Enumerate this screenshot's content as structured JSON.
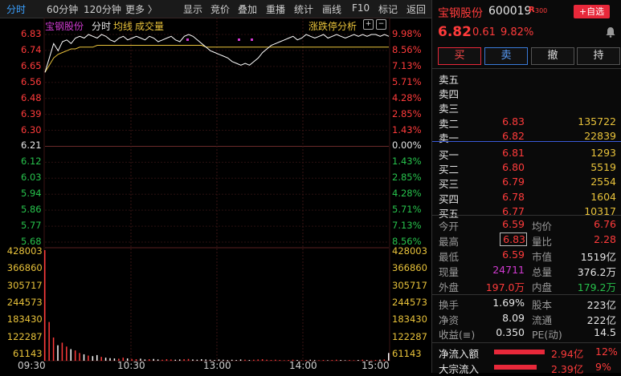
{
  "toolbar": {
    "items": [
      "分时",
      "60分钟",
      "120分钟",
      "更多 〉",
      "显示",
      "竞价",
      "叠加",
      "重播",
      "统计",
      "画线",
      "F10",
      "标记",
      "返回"
    ]
  },
  "chart_header": {
    "stock_name": "宝钢股份",
    "mode": "分时",
    "avg_label": "均线",
    "vol_label": "成交量",
    "limit_label": "涨跌停分析"
  },
  "chart_data": {
    "type": "line",
    "price_ticks": [
      "6.83",
      "6.74",
      "6.65",
      "6.56",
      "6.48",
      "6.39",
      "6.30",
      "6.21",
      "6.12",
      "6.03",
      "5.94",
      "5.86",
      "5.77",
      "5.68"
    ],
    "pct_ticks": [
      "9.98%",
      "8.56%",
      "7.13%",
      "5.71%",
      "4.28%",
      "2.85%",
      "1.43%",
      "0.00%",
      "1.43%",
      "2.85%",
      "4.28%",
      "5.71%",
      "7.13%",
      "8.56%"
    ],
    "vol_ticks": [
      "428003",
      "366860",
      "305717",
      "244573",
      "183430",
      "122287",
      "61143"
    ],
    "time_ticks": [
      "09:30",
      "10:30",
      "13:00",
      "14:00",
      "15:00"
    ],
    "ylim": [
      5.59,
      6.83
    ],
    "prev_close": 6.21,
    "price_series": [
      6.62,
      6.7,
      6.78,
      6.74,
      6.79,
      6.8,
      6.78,
      6.81,
      6.82,
      6.81,
      6.83,
      6.82,
      6.81,
      6.83,
      6.82,
      6.8,
      6.79,
      6.81,
      6.82,
      6.8,
      6.81,
      6.82,
      6.81,
      6.8,
      6.82,
      6.81,
      6.79,
      6.8,
      6.81,
      6.82,
      6.8,
      6.79,
      6.82,
      6.83,
      6.82,
      6.8,
      6.78,
      6.76,
      6.74,
      6.73,
      6.72,
      6.71,
      6.7,
      6.68,
      6.67,
      6.66,
      6.67,
      6.66,
      6.68,
      6.7,
      6.73,
      6.75,
      6.77,
      6.78,
      6.79,
      6.8,
      6.81,
      6.82,
      6.8,
      6.81,
      6.83,
      6.82,
      6.81,
      6.82,
      6.83,
      6.81,
      6.82,
      6.83,
      6.82,
      6.81,
      6.82,
      6.83,
      6.82,
      6.83,
      6.82,
      6.83,
      6.83,
      6.82,
      6.83,
      6.82
    ],
    "avg_series": [
      6.62,
      6.66,
      6.7,
      6.72,
      6.73,
      6.74,
      6.75,
      6.75,
      6.76,
      6.76,
      6.76,
      6.76,
      6.77,
      6.77,
      6.77,
      6.77,
      6.77,
      6.77,
      6.77,
      6.77,
      6.77,
      6.77,
      6.77,
      6.77,
      6.77,
      6.77,
      6.77,
      6.77,
      6.77,
      6.77,
      6.77,
      6.77,
      6.77,
      6.77,
      6.77,
      6.77,
      6.77,
      6.76,
      6.76,
      6.76,
      6.76,
      6.76,
      6.76,
      6.76,
      6.76,
      6.76,
      6.76,
      6.76,
      6.76,
      6.76,
      6.76,
      6.76,
      6.76,
      6.76,
      6.76,
      6.76,
      6.76,
      6.76,
      6.76,
      6.76,
      6.76,
      6.76,
      6.76,
      6.76,
      6.76,
      6.76,
      6.76,
      6.76,
      6.76,
      6.76,
      6.76,
      6.76,
      6.76,
      6.76,
      6.76,
      6.76,
      6.76,
      6.76,
      6.76,
      6.76
    ],
    "volume_series": [
      428003,
      150000,
      90000,
      60000,
      70000,
      55000,
      45000,
      40000,
      30000,
      25000,
      20000,
      18000,
      22000,
      15000,
      12000,
      10000,
      9000,
      8000,
      12000,
      9000,
      7000,
      6000,
      8000,
      5000,
      6000,
      7000,
      5000,
      4000,
      6000,
      5000,
      4000,
      5000,
      6000,
      7000,
      5000,
      4000,
      6000,
      5000,
      4000,
      3000,
      5000,
      4000,
      3000,
      4000,
      3000,
      5000,
      4000,
      3000,
      4000,
      5000,
      6000,
      4000,
      3000,
      4000,
      3000,
      2000,
      3000,
      4000,
      3000,
      2000,
      3000,
      4000,
      3000,
      2000,
      3000,
      2000,
      3000,
      4000,
      3000,
      2000,
      3000,
      2000,
      3000,
      4000,
      3000,
      2000,
      3000,
      4000,
      5000,
      30000
    ],
    "colors": {
      "price_line": "#ffffff",
      "avg_line": "#e8c23a",
      "up": "#ff3b3b",
      "down": "#27c24c"
    }
  },
  "panel": {
    "name": "宝钢股份",
    "code": "600019",
    "badge": "R",
    "badge_num": "300",
    "add_btn": "+自选",
    "price": "6.82",
    "change": "0.61",
    "change_pct": "9.82%",
    "actions": [
      "买",
      "卖",
      "撤",
      "持"
    ],
    "asks": [
      {
        "label": "卖五",
        "price": "",
        "vol": ""
      },
      {
        "label": "卖四",
        "price": "",
        "vol": ""
      },
      {
        "label": "卖三",
        "price": "",
        "vol": ""
      },
      {
        "label": "卖二",
        "price": "6.83",
        "vol": "135722"
      },
      {
        "label": "卖一",
        "price": "6.82",
        "vol": "22839"
      }
    ],
    "bids": [
      {
        "label": "买一",
        "price": "6.81",
        "vol": "1293"
      },
      {
        "label": "买二",
        "price": "6.80",
        "vol": "5519"
      },
      {
        "label": "买三",
        "price": "6.79",
        "vol": "2554"
      },
      {
        "label": "买四",
        "price": "6.78",
        "vol": "1604"
      },
      {
        "label": "买五",
        "price": "6.77",
        "vol": "10317"
      }
    ],
    "stats": {
      "open_label": "今开",
      "open": "6.59",
      "avg_label": "均价",
      "avg": "6.76",
      "high_label": "最高",
      "high": "6.83",
      "vol_ratio_label": "量比",
      "vol_ratio": "2.28",
      "low_label": "最低",
      "low": "6.59",
      "mktcap_label": "市值",
      "mktcap": "1519亿",
      "cur_vol_label": "现量",
      "cur_vol": "24711",
      "total_vol_label": "总量",
      "total_vol": "376.2万",
      "outer_label": "外盘",
      "outer": "197.0万",
      "inner_label": "内盘",
      "inner": "179.2万",
      "turnover_label": "换手",
      "turnover": "1.69%",
      "capital_label": "股本",
      "capital": "223亿",
      "nav_label": "净资",
      "nav": "8.09",
      "float_label": "流通",
      "float": "222亿",
      "eps_label": "收益(≡)",
      "eps": "0.350",
      "pe_label": "PE(动)",
      "pe": "14.5"
    },
    "flows": [
      {
        "label": "净流入额",
        "value": "2.94亿",
        "pct": "12%",
        "fill": 0.9
      },
      {
        "label": "大宗流入",
        "value": "2.39亿",
        "pct": "9%",
        "fill": 0.75
      }
    ]
  }
}
